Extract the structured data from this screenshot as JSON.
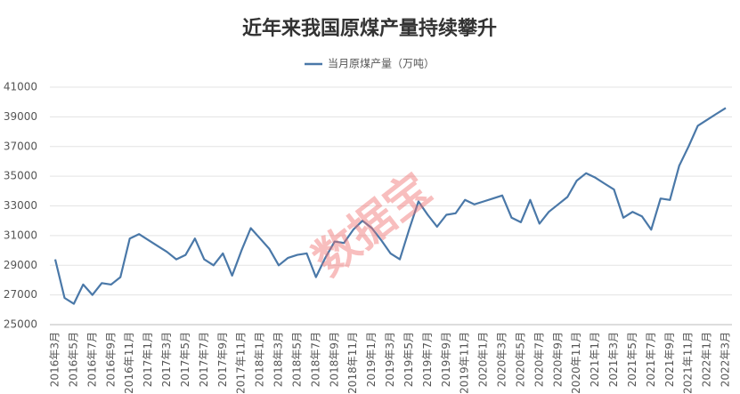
{
  "chart_data": {
    "type": "line",
    "title": "近年来我国原煤产量持续攀升",
    "watermark": "数据宝",
    "categories": [
      "2016年3月",
      null,
      "2016年5月",
      null,
      "2016年7月",
      null,
      "2016年9月",
      null,
      "2016年11月",
      null,
      "2017年1月",
      null,
      "2017年3月",
      null,
      "2017年5月",
      null,
      "2017年7月",
      null,
      "2017年9月",
      null,
      "2017年11月",
      null,
      "2018年1月",
      null,
      "2018年3月",
      null,
      "2018年5月",
      null,
      "2018年7月",
      null,
      "2018年9月",
      null,
      "2018年11月",
      null,
      "2019年1月",
      null,
      "2019年3月",
      null,
      "2019年5月",
      null,
      "2019年7月",
      null,
      "2019年9月",
      null,
      "2019年11月",
      null,
      "2020年1月",
      null,
      "2020年3月",
      null,
      "2020年5月",
      null,
      "2020年7月",
      null,
      "2020年9月",
      null,
      "2020年11月",
      null,
      "2021年1月",
      null,
      "2021年3月",
      null,
      "2021年5月",
      null,
      "2021年7月",
      null,
      "2021年9月",
      null,
      "2021年11月",
      null,
      "2022年1月",
      null,
      "2022年3月"
    ],
    "series": [
      {
        "name": "当月原煤产量（万吨）",
        "color": "#4a78a8",
        "values": [
          29400,
          26800,
          26400,
          27700,
          27000,
          27800,
          27700,
          28200,
          30800,
          31100,
          30700,
          30300,
          29900,
          29400,
          29700,
          30800,
          29400,
          29000,
          29800,
          28300,
          30000,
          31500,
          30800,
          30100,
          29000,
          29500,
          29700,
          29800,
          28200,
          29500,
          30600,
          30500,
          31400,
          32000,
          31500,
          30700,
          29800,
          29400,
          31400,
          33300,
          32400,
          31600,
          32400,
          32500,
          33400,
          33100,
          33300,
          33500,
          33700,
          32200,
          31900,
          33400,
          31800,
          32600,
          33100,
          33600,
          34700,
          35200,
          34900,
          34500,
          34100,
          32200,
          32600,
          32300,
          31400,
          33500,
          33400,
          35700,
          37000,
          38400,
          38800,
          39200,
          39600
        ]
      }
    ],
    "ylim": [
      25000,
      41000
    ],
    "yticks": [
      25000,
      27000,
      29000,
      31000,
      33000,
      35000,
      37000,
      39000,
      41000
    ],
    "grid": true,
    "legend": "top"
  }
}
